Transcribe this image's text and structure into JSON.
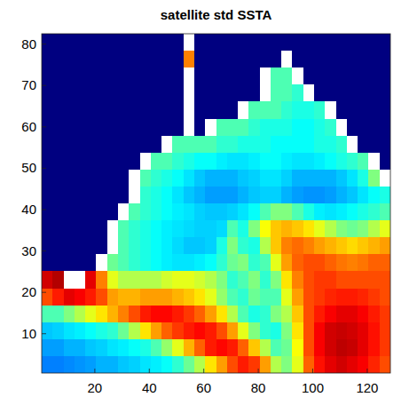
{
  "chart_data": {
    "type": "heatmap",
    "title": "satellite std SSTA",
    "x": [
      2.5,
      6.5,
      10.5,
      14.5,
      18.5,
      22.5,
      26.5,
      30.5,
      34.5,
      38.5,
      42.5,
      46.5,
      50.5,
      54.5,
      58.5,
      62.5,
      66.5,
      70.5,
      74.5,
      78.5,
      82.5,
      86.5,
      90.5,
      94.5,
      98.5,
      102.5,
      106.5,
      110.5,
      114.5,
      118.5,
      122.5,
      126.5
    ],
    "y": [
      80.45,
      76.35,
      72.25,
      68.15,
      64.05,
      59.95,
      55.85,
      51.75,
      47.65,
      43.55,
      39.45,
      35.35,
      31.25,
      27.15,
      23.05,
      18.95,
      14.85,
      10.75,
      6.65,
      2.55
    ],
    "xlim": [
      0.5,
      128.5
    ],
    "ylim": [
      0.5,
      82.5
    ],
    "xticks": [
      20,
      40,
      60,
      80,
      100,
      120
    ],
    "yticks": [
      10,
      20,
      30,
      40,
      50,
      60,
      70,
      80
    ],
    "zlim": [
      0,
      1
    ],
    "cells": [
      [
        0,
        0,
        0,
        0,
        0,
        0,
        0,
        0,
        0,
        0,
        0,
        0,
        0,
        null,
        0,
        0,
        0,
        0,
        0,
        0,
        0,
        0,
        0,
        0,
        0,
        0,
        0,
        0,
        0,
        0,
        0,
        0
      ],
      [
        0,
        0,
        0,
        0,
        0,
        0,
        0,
        0,
        0,
        0,
        0,
        0,
        0,
        0.75,
        0,
        0,
        0,
        0,
        0,
        0,
        0,
        0,
        null,
        0,
        0,
        0,
        0,
        0,
        0,
        0,
        0,
        0
      ],
      [
        0,
        0,
        0,
        0,
        0,
        0,
        0,
        0,
        0,
        0,
        0,
        0,
        0,
        null,
        0,
        0,
        0,
        0,
        0,
        0,
        null,
        0.45,
        0.45,
        null,
        0,
        0,
        0,
        0,
        0,
        0,
        0,
        0
      ],
      [
        0,
        0,
        0,
        0,
        0,
        0,
        0,
        0,
        0,
        0,
        0,
        0,
        0,
        null,
        0,
        0,
        0,
        0,
        0,
        0,
        null,
        0.45,
        0.45,
        0.42,
        null,
        0,
        0,
        0,
        0,
        0,
        0,
        0
      ],
      [
        0,
        0,
        0,
        0,
        0,
        0,
        0,
        0,
        0,
        0,
        0,
        0,
        0,
        null,
        0,
        0,
        0,
        0,
        null,
        0.45,
        0.45,
        0.45,
        0.42,
        0.4,
        0.4,
        0.42,
        null,
        0,
        0,
        0,
        0,
        0
      ],
      [
        0,
        0,
        0,
        0,
        0,
        0,
        0,
        0,
        0,
        0,
        0,
        0,
        0,
        null,
        0,
        null,
        0.45,
        0.45,
        0.45,
        0.42,
        0.4,
        0.4,
        0.4,
        0.38,
        0.38,
        0.4,
        0.42,
        null,
        0,
        0,
        0,
        0
      ],
      [
        0,
        0,
        0,
        0,
        0,
        0,
        0,
        0,
        0,
        0,
        0,
        null,
        0.45,
        0.45,
        0.45,
        0.45,
        0.42,
        0.42,
        0.4,
        0.4,
        0.4,
        0.38,
        0.38,
        0.38,
        0.38,
        0.4,
        0.4,
        0.42,
        null,
        0,
        0,
        0
      ],
      [
        0,
        0,
        0,
        0,
        0,
        0,
        0,
        0,
        0,
        null,
        0.45,
        0.45,
        0.42,
        0.4,
        0.38,
        0.38,
        0.36,
        0.35,
        0.35,
        0.36,
        0.38,
        0.38,
        0.36,
        0.35,
        0.35,
        0.36,
        0.38,
        0.4,
        0.42,
        0.45,
        null,
        0
      ],
      [
        0,
        0,
        0,
        0,
        0,
        0,
        0,
        0,
        null,
        0.45,
        0.42,
        0.4,
        0.38,
        0.35,
        0.32,
        0.3,
        0.3,
        0.3,
        0.32,
        0.33,
        0.35,
        0.35,
        0.33,
        0.3,
        0.3,
        0.3,
        0.3,
        0.32,
        0.35,
        0.4,
        0.5,
        null
      ],
      [
        0,
        0,
        0,
        0,
        0,
        0,
        0,
        0,
        null,
        0.42,
        0.4,
        0.38,
        0.35,
        0.32,
        0.3,
        0.28,
        0.28,
        0.28,
        0.3,
        0.32,
        0.33,
        0.33,
        0.3,
        0.28,
        0.27,
        0.27,
        0.28,
        0.3,
        0.32,
        0.35,
        0.38,
        0.4
      ],
      [
        0,
        0,
        0,
        0,
        0,
        0,
        0,
        null,
        0.45,
        0.42,
        0.4,
        0.38,
        0.36,
        0.35,
        0.33,
        0.32,
        0.32,
        0.33,
        0.35,
        0.38,
        0.45,
        0.5,
        0.5,
        0.45,
        0.4,
        0.36,
        0.35,
        0.36,
        0.38,
        0.4,
        0.42,
        0.45
      ],
      [
        0,
        0,
        0,
        0,
        0,
        0,
        null,
        0.45,
        0.42,
        0.4,
        0.38,
        0.36,
        0.35,
        0.34,
        0.33,
        0.33,
        0.34,
        0.45,
        0.4,
        0.5,
        0.62,
        0.68,
        0.7,
        0.68,
        0.65,
        0.6,
        0.55,
        0.5,
        0.48,
        0.5,
        0.55,
        0.6
      ],
      [
        0,
        0,
        0,
        0,
        0,
        0,
        null,
        0.45,
        0.42,
        0.4,
        0.38,
        0.36,
        0.34,
        0.32,
        0.32,
        0.33,
        0.4,
        0.5,
        0.42,
        0.4,
        0.55,
        0.68,
        0.75,
        0.77,
        0.75,
        0.72,
        0.7,
        0.68,
        0.66,
        0.68,
        0.7,
        0.72
      ],
      [
        0,
        0,
        0,
        0,
        0,
        null,
        0.48,
        0.45,
        0.42,
        0.4,
        0.38,
        0.36,
        0.35,
        0.35,
        0.36,
        0.38,
        0.42,
        0.48,
        0.5,
        0.42,
        0.45,
        0.6,
        0.72,
        0.78,
        0.8,
        0.8,
        0.78,
        0.76,
        0.75,
        0.76,
        0.78,
        0.78
      ],
      [
        0.92,
        0.95,
        null,
        null,
        0.9,
        0.75,
        0.6,
        0.55,
        0.55,
        0.55,
        0.55,
        0.58,
        0.6,
        0.6,
        0.58,
        0.55,
        0.5,
        0.42,
        0.45,
        0.5,
        0.42,
        0.5,
        0.65,
        0.75,
        0.8,
        0.82,
        0.82,
        0.8,
        0.8,
        0.8,
        0.8,
        0.8
      ],
      [
        0.8,
        0.85,
        0.9,
        0.88,
        0.85,
        0.8,
        0.72,
        0.7,
        0.7,
        0.72,
        0.72,
        0.72,
        0.7,
        0.68,
        0.65,
        0.6,
        0.52,
        0.45,
        0.42,
        0.48,
        0.45,
        0.45,
        0.6,
        0.72,
        0.8,
        0.82,
        0.84,
        0.85,
        0.85,
        0.84,
        0.82,
        0.8
      ],
      [
        0.45,
        0.45,
        0.5,
        0.55,
        0.6,
        0.65,
        0.7,
        0.75,
        0.8,
        0.85,
        0.87,
        0.87,
        0.85,
        0.82,
        0.78,
        0.72,
        0.65,
        0.55,
        0.45,
        0.4,
        0.42,
        0.5,
        0.55,
        0.68,
        0.8,
        0.85,
        0.88,
        0.9,
        0.9,
        0.88,
        0.85,
        0.82
      ],
      [
        0.32,
        0.33,
        0.35,
        0.36,
        0.38,
        0.4,
        0.42,
        0.48,
        0.55,
        0.65,
        0.72,
        0.78,
        0.82,
        0.85,
        0.87,
        0.85,
        0.8,
        0.72,
        0.6,
        0.5,
        0.42,
        0.4,
        0.5,
        0.65,
        0.8,
        0.88,
        0.92,
        0.93,
        0.92,
        0.9,
        0.86,
        0.82
      ],
      [
        0.28,
        0.28,
        0.3,
        0.3,
        0.32,
        0.33,
        0.35,
        0.36,
        0.38,
        0.4,
        0.45,
        0.52,
        0.6,
        0.7,
        0.78,
        0.85,
        0.87,
        0.85,
        0.78,
        0.68,
        0.55,
        0.45,
        0.48,
        0.62,
        0.8,
        0.88,
        0.92,
        0.94,
        0.93,
        0.9,
        0.86,
        0.82
      ],
      [
        0.25,
        0.25,
        0.26,
        0.27,
        0.28,
        0.3,
        0.3,
        0.32,
        0.33,
        0.35,
        0.36,
        0.38,
        0.42,
        0.48,
        0.55,
        0.65,
        0.72,
        0.8,
        0.85,
        0.82,
        0.72,
        0.55,
        0.5,
        0.6,
        0.78,
        0.86,
        0.9,
        0.92,
        0.9,
        0.88,
        0.84,
        0.8
      ]
    ]
  }
}
